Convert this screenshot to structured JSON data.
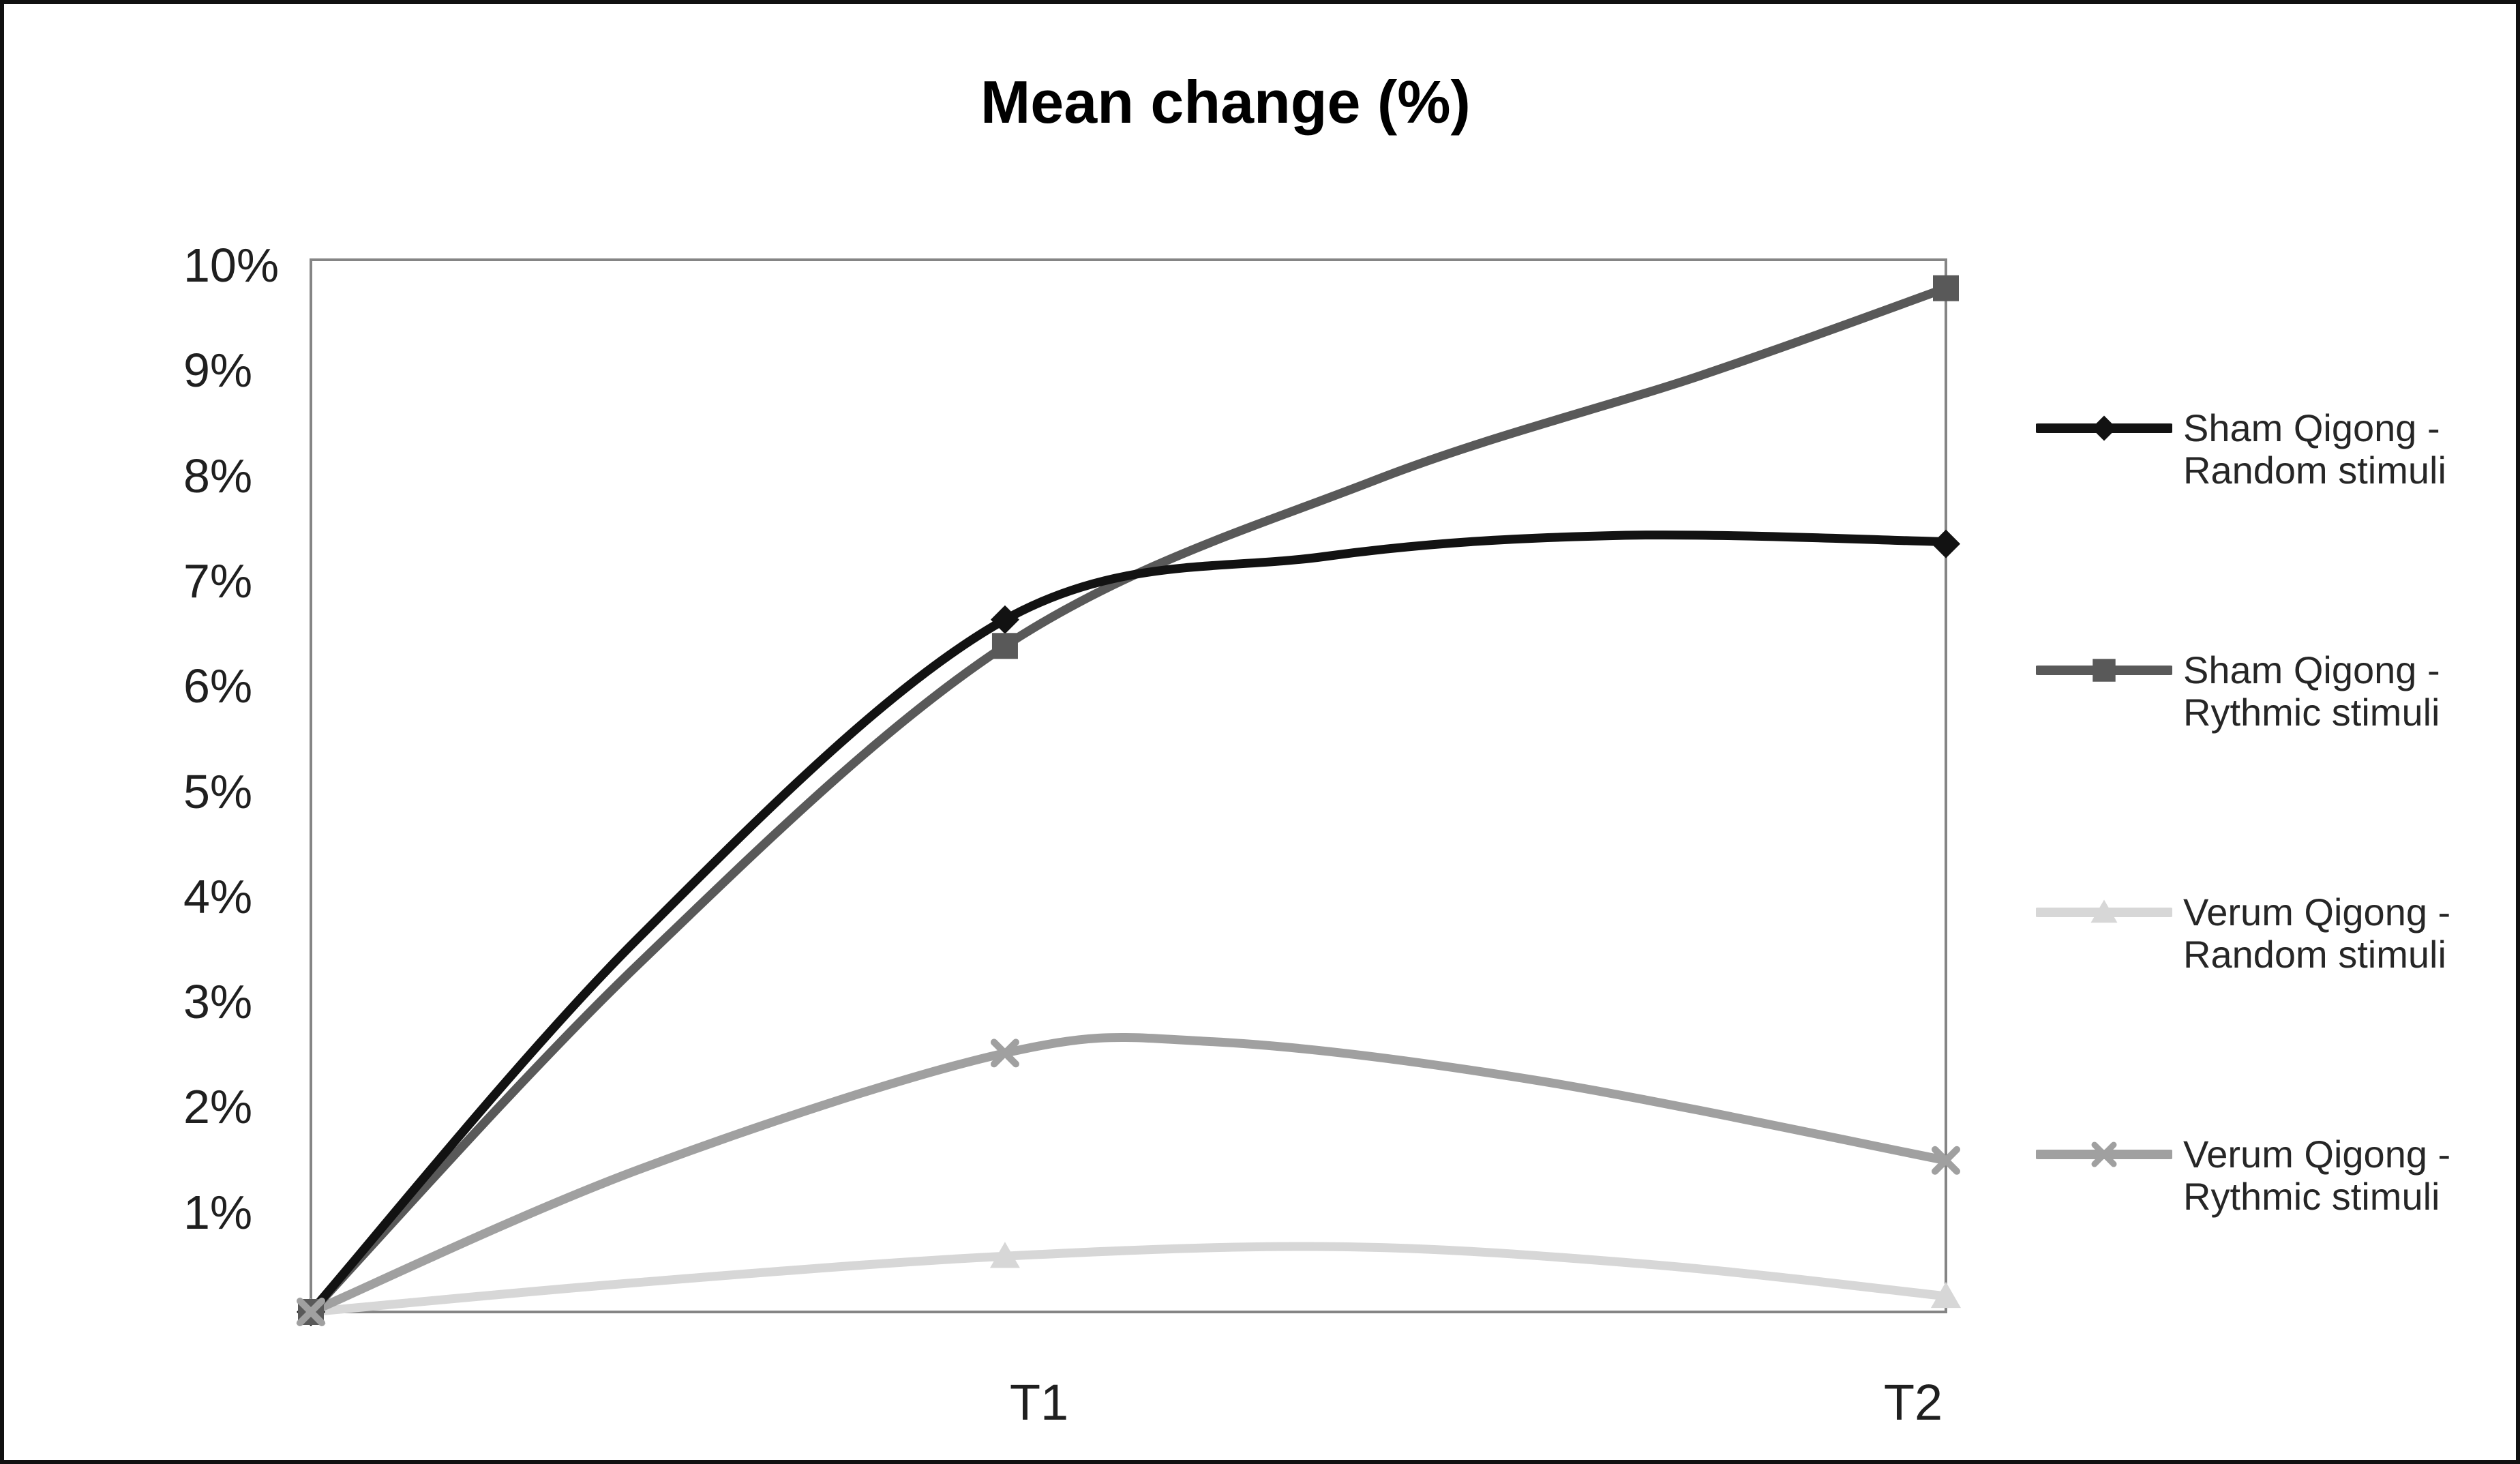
{
  "page": {
    "background": "#ffffff",
    "border_color": "#111111"
  },
  "chart_data": {
    "type": "line",
    "title": "Mean change (%)",
    "x_tick_labels": [
      "T1",
      "T2"
    ],
    "x_positions": [
      0,
      0.4245,
      1
    ],
    "ylim": [
      0,
      10
    ],
    "y_tick_labels": [
      "1%",
      "2%",
      "3%",
      "4%",
      "5%",
      "6%",
      "7%",
      "8%",
      "9%",
      "10%"
    ],
    "grid": false,
    "legend_position": "right",
    "axis_color": "#858585",
    "text_color": "#1f1f1f",
    "series": [
      {
        "name": "Sham Qigong - Random stimuli",
        "label_lines": [
          "Sham Qigong -",
          "Random stimuli"
        ],
        "color": "#121212",
        "marker": "diamond",
        "values": [
          0,
          6.58,
          7.3
        ],
        "shape_points": [
          [
            0,
            0
          ],
          [
            0.2,
            3.55
          ],
          [
            0.4245,
            6.58
          ],
          [
            0.62,
            7.18
          ],
          [
            0.8,
            7.38
          ],
          [
            1,
            7.32
          ]
        ]
      },
      {
        "name": "Sham Qigong - Rythmic stimuli",
        "label_lines": [
          "Sham Qigong -",
          "Rythmic stimuli"
        ],
        "color": "#595959",
        "marker": "square",
        "values": [
          0,
          6.33,
          9.73
        ],
        "shape_points": [
          [
            0,
            0
          ],
          [
            0.2,
            3.3
          ],
          [
            0.4245,
            6.33
          ],
          [
            0.65,
            7.9
          ],
          [
            0.85,
            8.9
          ],
          [
            1,
            9.73
          ]
        ]
      },
      {
        "name": "Verum Qigong - Random stimuli",
        "label_lines": [
          "Verum Qigong -",
          "Random stimuli"
        ],
        "color": "#d7d7d7",
        "marker": "triangle",
        "values": [
          0,
          0.53,
          0.15
        ],
        "shape_points": [
          [
            0,
            0
          ],
          [
            0.2,
            0.28
          ],
          [
            0.4245,
            0.53
          ],
          [
            0.63,
            0.62
          ],
          [
            0.82,
            0.45
          ],
          [
            1,
            0.15
          ]
        ]
      },
      {
        "name": "Verum Qigong - Rythmic stimuli",
        "label_lines": [
          "Verum Qigong -",
          "Rythmic stimuli"
        ],
        "color": "#a0a0a0",
        "marker": "x",
        "values": [
          0,
          2.46,
          1.44
        ],
        "shape_points": [
          [
            0,
            0
          ],
          [
            0.2,
            1.35
          ],
          [
            0.4245,
            2.46
          ],
          [
            0.55,
            2.57
          ],
          [
            0.75,
            2.2
          ],
          [
            1,
            1.44
          ]
        ]
      }
    ]
  }
}
